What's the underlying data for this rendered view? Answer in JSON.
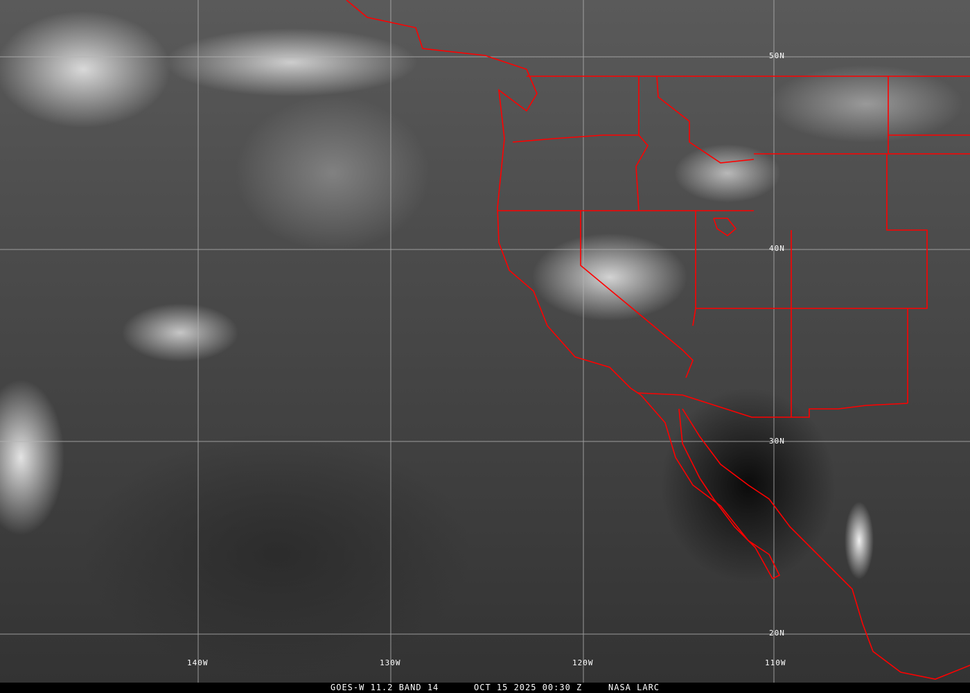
{
  "image": {
    "type": "satellite-infrared",
    "colors": {
      "border": "#ff0000",
      "grid": "#b4b4b4",
      "caption_bg": "#000000",
      "text": "#ffffff"
    }
  },
  "grid": {
    "longitude_labels": [
      "140W",
      "130W",
      "120W",
      "110W"
    ],
    "latitude_labels": [
      "50N",
      "40N",
      "30N",
      "20N"
    ]
  },
  "caption": {
    "satellite": "GOES-W 11.2 BAND 14",
    "datetime": "OCT 15 2025 00:30 Z",
    "source": "NASA LARC"
  }
}
